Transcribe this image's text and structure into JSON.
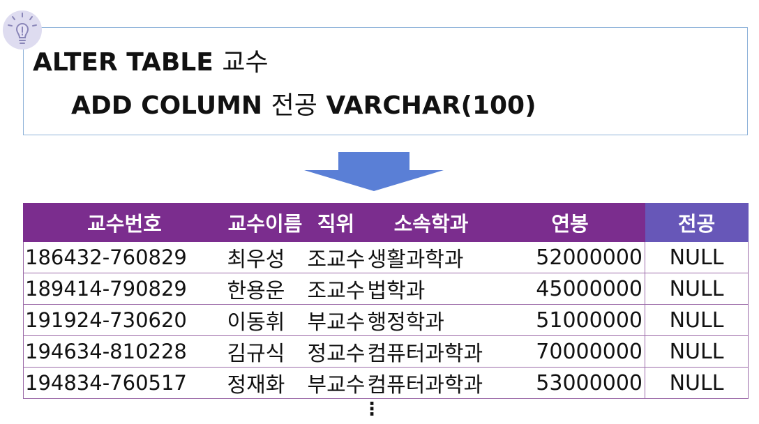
{
  "sql": {
    "line1_keyword": "ALTER TABLE",
    "line1_table": "교수",
    "line2_keyword": "ADD COLUMN",
    "line2_column": "전공",
    "line2_type": "VARCHAR(100)"
  },
  "icons": {
    "badge": "lightbulb-icon",
    "arrow": "down-arrow-icon"
  },
  "colors": {
    "header_bg": "#7b2d8e",
    "new_column_header_bg": "#6757b8",
    "arrow": "#5a7fd6",
    "code_border": "#8fb3d9",
    "badge_bg": "#dedcf0"
  },
  "table": {
    "headers": [
      "교수번호",
      "교수이름",
      "직위",
      "소속학과",
      "연봉",
      "전공"
    ],
    "rows": [
      [
        "186432-760829",
        "최우성",
        "조교수",
        "생활과학과",
        "52000000",
        "NULL"
      ],
      [
        "189414-790829",
        "한용운",
        "조교수",
        "법학과",
        "45000000",
        "NULL"
      ],
      [
        "191924-730620",
        "이동휘",
        "부교수",
        "행정학과",
        "51000000",
        "NULL"
      ],
      [
        "194634-810228",
        "김규식",
        "정교수",
        "컴퓨터과학과",
        "70000000",
        "NULL"
      ],
      [
        "194834-760517",
        "정재화",
        "부교수",
        "컴퓨터과학과",
        "53000000",
        "NULL"
      ]
    ],
    "continuation": "⋮"
  }
}
